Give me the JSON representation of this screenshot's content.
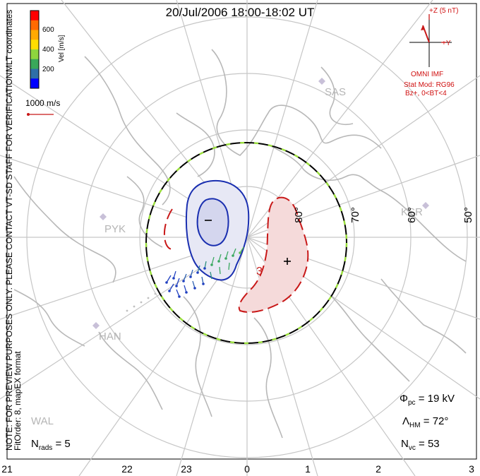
{
  "title": "20/Jul/2006 18:00-18:02 UT",
  "colorbar": {
    "label": "Vel [m/s]",
    "ticks": [
      "600",
      "400",
      "200"
    ],
    "colors": [
      "#ff0000",
      "#ff6a00",
      "#ffaa00",
      "#ffdd00",
      "#8ed63e",
      "#3aa85a",
      "#2e6fa8",
      "#0000ff"
    ]
  },
  "coords_label": "MLT coordinates",
  "scale_label": "1000 m/s",
  "imf": {
    "z_label": "+Z (5 nT)",
    "y_label": "+Y",
    "source": "OMNI IMF",
    "model": "Stat Mod: RG96",
    "condition": "Bz+, 0<BT<4"
  },
  "stations": [
    "SAS",
    "KSR",
    "PYK",
    "HAN",
    "WAL"
  ],
  "lat_labels": [
    "80°",
    "70°",
    "60°",
    "50°"
  ],
  "mlt_labels": [
    "21",
    "22",
    "23",
    "0",
    "1",
    "2",
    "3"
  ],
  "contour_labels": {
    "minus": "−",
    "plus": "+",
    "three": "3"
  },
  "stats": {
    "phi": "Φpc = 19 kV",
    "lambda": "ΛHM = 72°",
    "nvc": "Nvc = 53",
    "nrads": "Nrads = 5"
  },
  "notes": {
    "preview": "NOTE: FOR PREVIEW PURPOSES ONLY. PLEASE CONTACT VT-SD STAFF FOR VERIFICATION.",
    "fit": "FitOrder: 8, mapEX format"
  }
}
